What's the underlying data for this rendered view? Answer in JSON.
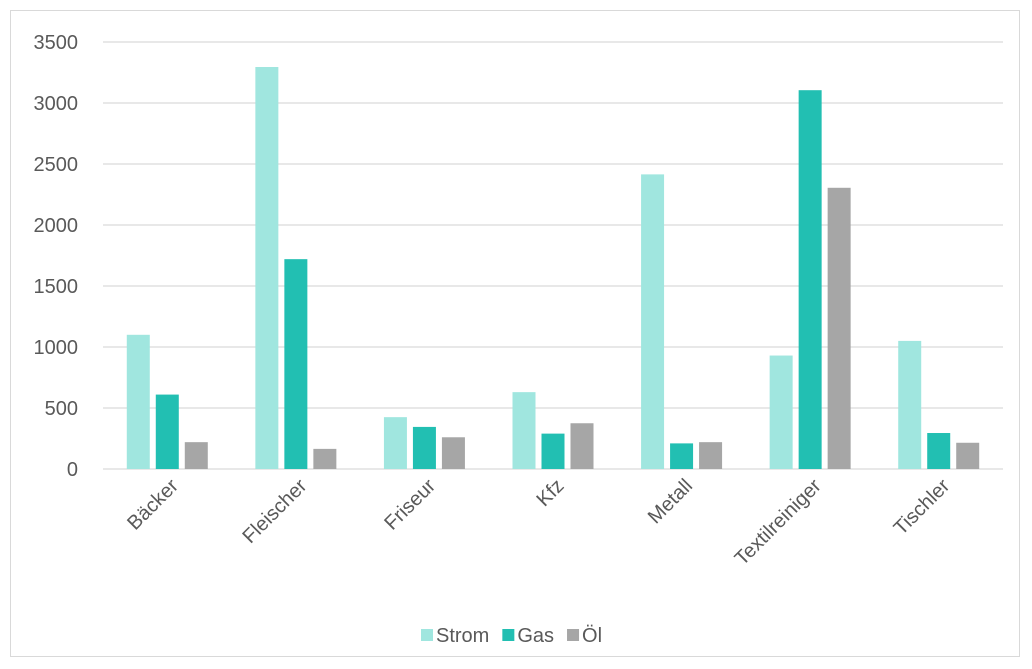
{
  "chart_data": {
    "type": "bar",
    "title": "",
    "xlabel": "",
    "ylabel": "",
    "categories": [
      "Bäcker",
      "Fleischer",
      "Friseur",
      "Kfz",
      "Metall",
      "Textilreiniger",
      "Tischler"
    ],
    "series": [
      {
        "name": "Strom",
        "color": "#a0e6df",
        "values": [
          1100,
          3295,
          425,
          630,
          2415,
          930,
          1050
        ]
      },
      {
        "name": "Gas",
        "color": "#22bfb2",
        "values": [
          610,
          1720,
          345,
          290,
          210,
          3105,
          295
        ]
      },
      {
        "name": "Öl",
        "color": "#a6a6a6",
        "values": [
          220,
          165,
          260,
          375,
          220,
          2305,
          215
        ]
      }
    ],
    "ylim": [
      0,
      3500
    ],
    "yticks": [
      0,
      500,
      1000,
      1500,
      2000,
      2500,
      3000,
      3500
    ],
    "grid": true,
    "legend_position": "bottom"
  }
}
